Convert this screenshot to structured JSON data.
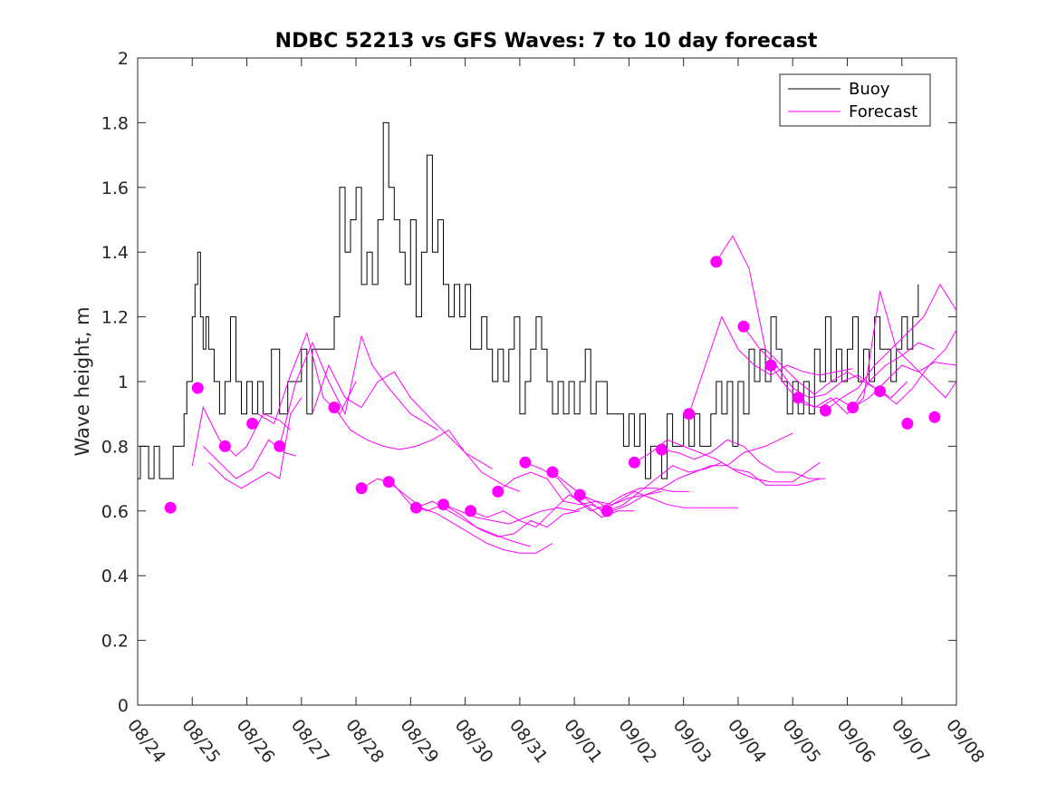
{
  "chart_data": {
    "type": "line",
    "title": "NDBC 52213 vs GFS Waves: 7 to 10 day forecast",
    "ylabel": "Wave height, m",
    "xlabel": "",
    "xlim": [
      0,
      15
    ],
    "ylim": [
      0,
      2
    ],
    "x_unit": "days since 08/24 00:00",
    "x_tick_labels": [
      "08/24",
      "08/25",
      "08/26",
      "08/27",
      "08/28",
      "08/29",
      "08/30",
      "08/31",
      "09/01",
      "09/02",
      "09/03",
      "09/04",
      "09/05",
      "09/06",
      "09/07",
      "09/08"
    ],
    "y_ticks": [
      0,
      0.2,
      0.4,
      0.6,
      0.8,
      1,
      1.2,
      1.4,
      1.6,
      1.8,
      2
    ],
    "y_tick_labels": [
      "0",
      "0.2",
      "0.4",
      "0.6",
      "0.8",
      "1",
      "1.2",
      "1.4",
      "1.6",
      "1.8",
      "2"
    ],
    "legend": {
      "position": "top-right",
      "entries": [
        {
          "label": "Buoy",
          "color": "#000000"
        },
        {
          "label": "Forecast",
          "color": "#ff00ff"
        }
      ]
    },
    "colors": {
      "buoy": "#000000",
      "forecast": "#ff00ff",
      "axis": "#262626"
    },
    "buoy": {
      "x": [
        0.0,
        0.05,
        0.1,
        0.2,
        0.3,
        0.4,
        0.45,
        0.55,
        0.65,
        0.75,
        0.85,
        0.9,
        1.0,
        1.05,
        1.1,
        1.15,
        1.2,
        1.25,
        1.3,
        1.4,
        1.5,
        1.6,
        1.7,
        1.8,
        1.9,
        2.0,
        2.1,
        2.2,
        2.3,
        2.35,
        2.45,
        2.6,
        2.75,
        2.9,
        3.0,
        3.1,
        3.2,
        3.3,
        3.4,
        3.5,
        3.6,
        3.7,
        3.8,
        3.9,
        4.0,
        4.1,
        4.2,
        4.3,
        4.4,
        4.5,
        4.55,
        4.6,
        4.7,
        4.8,
        4.9,
        5.0,
        5.1,
        5.2,
        5.3,
        5.4,
        5.5,
        5.6,
        5.7,
        5.8,
        5.9,
        6.0,
        6.1,
        6.2,
        6.3,
        6.4,
        6.5,
        6.6,
        6.7,
        6.8,
        6.9,
        7.0,
        7.1,
        7.2,
        7.3,
        7.4,
        7.5,
        7.6,
        7.7,
        7.8,
        7.9,
        8.0,
        8.1,
        8.2,
        8.3,
        8.4,
        8.5,
        8.6,
        8.7,
        8.8,
        8.9,
        9.0,
        9.1,
        9.2,
        9.3,
        9.4,
        9.5,
        9.6,
        9.7,
        9.8,
        9.9,
        10.0,
        10.1,
        10.2,
        10.3,
        10.4,
        10.5,
        10.6,
        10.7,
        10.8,
        10.9,
        11.0,
        11.1,
        11.2,
        11.3,
        11.4,
        11.5,
        11.6,
        11.7,
        11.8,
        11.9,
        12.0,
        12.1,
        12.2,
        12.3,
        12.4,
        12.5,
        12.6,
        12.7,
        12.8,
        12.9,
        13.0,
        13.1,
        13.2,
        13.3,
        13.4,
        13.5,
        13.6,
        13.7,
        13.8,
        13.9,
        14.0,
        14.1,
        14.2,
        14.3
      ],
      "y": [
        0.7,
        0.8,
        0.8,
        0.7,
        0.8,
        0.7,
        0.7,
        0.7,
        0.8,
        0.8,
        0.9,
        1.0,
        1.2,
        1.3,
        1.4,
        1.2,
        1.1,
        1.2,
        1.1,
        1.0,
        0.9,
        1.0,
        1.2,
        1.0,
        0.9,
        1.0,
        0.9,
        1.0,
        0.9,
        0.9,
        1.1,
        0.9,
        1.0,
        1.0,
        1.1,
        0.9,
        1.1,
        1.1,
        1.1,
        1.1,
        1.2,
        1.6,
        1.4,
        1.5,
        1.6,
        1.3,
        1.4,
        1.3,
        1.5,
        1.8,
        1.8,
        1.6,
        1.5,
        1.4,
        1.3,
        1.5,
        1.2,
        1.4,
        1.7,
        1.4,
        1.5,
        1.3,
        1.2,
        1.3,
        1.2,
        1.3,
        1.1,
        1.1,
        1.2,
        1.1,
        1.0,
        1.1,
        1.0,
        1.1,
        1.2,
        0.9,
        1.0,
        1.1,
        1.2,
        1.1,
        1.0,
        0.9,
        1.0,
        0.9,
        1.0,
        0.9,
        1.0,
        1.1,
        0.9,
        1.0,
        1.0,
        0.9,
        0.9,
        0.9,
        0.8,
        0.9,
        0.8,
        0.9,
        0.7,
        0.8,
        0.8,
        0.7,
        0.9,
        0.8,
        0.8,
        0.9,
        0.8,
        0.9,
        0.8,
        0.8,
        0.9,
        1.0,
        0.9,
        1.0,
        0.8,
        1.0,
        0.9,
        1.1,
        1.0,
        1.1,
        1.0,
        1.2,
        1.1,
        1.0,
        0.9,
        1.0,
        0.9,
        1.0,
        0.9,
        1.1,
        1.0,
        1.2,
        1.0,
        1.1,
        1.0,
        1.1,
        1.2,
        1.0,
        1.1,
        1.0,
        1.2,
        1.1,
        1.1,
        1.0,
        1.1,
        1.2,
        1.1,
        1.2,
        1.3
      ]
    },
    "forecast_lines": [
      {
        "x": [
          1.0,
          1.2,
          1.5,
          1.8,
          2.0,
          2.3,
          2.6,
          2.8
        ],
        "y": [
          0.74,
          0.92,
          0.82,
          0.77,
          0.8,
          0.9,
          0.88,
          0.85
        ]
      },
      {
        "x": [
          1.2,
          1.5,
          1.8,
          2.1,
          2.4,
          2.7,
          2.9
        ],
        "y": [
          0.8,
          0.75,
          0.7,
          0.73,
          0.82,
          0.78,
          0.77
        ]
      },
      {
        "x": [
          1.3,
          1.6,
          1.9,
          2.2,
          2.4,
          2.6,
          2.8,
          3.0
        ],
        "y": [
          0.75,
          0.7,
          0.67,
          0.7,
          0.72,
          0.7,
          0.9,
          0.95
        ]
      },
      {
        "x": [
          2.2,
          2.5,
          2.8,
          3.1,
          3.4,
          3.7,
          4.0
        ],
        "y": [
          0.9,
          0.87,
          1.02,
          1.15,
          0.95,
          0.9,
          1.0
        ]
      },
      {
        "x": [
          2.6,
          2.9,
          3.2,
          3.5,
          3.8,
          4.1,
          4.3,
          4.6,
          5.0,
          5.5
        ],
        "y": [
          0.8,
          1.0,
          1.12,
          1.0,
          0.9,
          1.14,
          1.05,
          0.98,
          0.9,
          0.85
        ]
      },
      {
        "x": [
          3.2,
          3.5,
          3.8,
          4.1,
          4.4,
          4.7,
          5.0,
          5.4,
          6.0,
          6.5
        ],
        "y": [
          0.9,
          1.05,
          0.95,
          0.92,
          1.0,
          1.03,
          0.95,
          0.88,
          0.78,
          0.73
        ]
      },
      {
        "x": [
          3.6,
          3.9,
          4.2,
          4.5,
          4.8,
          5.1,
          5.4,
          5.7,
          6.0,
          6.3,
          6.7,
          7.0
        ],
        "y": [
          0.92,
          0.85,
          0.82,
          0.8,
          0.79,
          0.8,
          0.82,
          0.85,
          0.78,
          0.72,
          0.68,
          0.66
        ]
      },
      {
        "x": [
          4.1,
          4.4,
          4.7,
          5.0,
          5.3,
          5.6,
          5.9,
          6.2,
          6.5,
          6.8,
          7.0,
          7.2
        ],
        "y": [
          0.67,
          0.7,
          0.68,
          0.62,
          0.6,
          0.62,
          0.59,
          0.55,
          0.53,
          0.51,
          0.5,
          0.49
        ]
      },
      {
        "x": [
          4.6,
          4.9,
          5.2,
          5.5,
          5.8,
          6.1,
          6.4,
          6.7,
          7.0,
          7.3,
          7.6
        ],
        "y": [
          0.69,
          0.65,
          0.61,
          0.59,
          0.56,
          0.53,
          0.5,
          0.48,
          0.47,
          0.47,
          0.5
        ]
      },
      {
        "x": [
          5.1,
          5.4,
          5.7,
          6.0,
          6.3,
          6.6,
          6.9,
          7.2,
          7.5,
          7.8,
          8.1
        ],
        "y": [
          0.61,
          0.63,
          0.6,
          0.57,
          0.54,
          0.52,
          0.53,
          0.57,
          0.55,
          0.59,
          0.6
        ]
      },
      {
        "x": [
          5.6,
          5.9,
          6.2,
          6.5,
          6.8,
          7.1,
          7.4,
          7.7,
          8.0,
          8.3,
          8.6
        ],
        "y": [
          0.62,
          0.6,
          0.58,
          0.57,
          0.56,
          0.58,
          0.6,
          0.61,
          0.6,
          0.62,
          0.6
        ]
      },
      {
        "x": [
          6.1,
          6.4,
          6.7,
          7.0,
          7.3,
          7.6,
          7.9,
          8.2,
          8.5,
          8.8,
          9.1
        ],
        "y": [
          0.6,
          0.58,
          0.6,
          0.57,
          0.55,
          0.6,
          0.65,
          0.62,
          0.58,
          0.6,
          0.6
        ]
      },
      {
        "x": [
          6.6,
          6.9,
          7.2,
          7.5,
          7.8,
          8.1,
          8.4,
          8.7,
          9.0,
          9.3,
          9.6
        ],
        "y": [
          0.66,
          0.7,
          0.72,
          0.7,
          0.63,
          0.62,
          0.63,
          0.62,
          0.64,
          0.65,
          0.66
        ]
      },
      {
        "x": [
          7.1,
          7.4,
          7.7,
          8.0,
          8.3,
          8.6,
          8.9,
          9.2,
          9.5,
          9.8,
          10.1
        ],
        "y": [
          0.75,
          0.73,
          0.7,
          0.64,
          0.6,
          0.62,
          0.65,
          0.67,
          0.67,
          0.66,
          0.66
        ]
      },
      {
        "x": [
          7.6,
          7.9,
          8.2,
          8.5,
          8.8,
          9.1,
          9.4,
          9.7,
          10.0,
          10.3,
          10.6,
          11.0
        ],
        "y": [
          0.72,
          0.68,
          0.64,
          0.6,
          0.63,
          0.66,
          0.64,
          0.62,
          0.61,
          0.61,
          0.61,
          0.61
        ]
      },
      {
        "x": [
          8.1,
          8.4,
          8.7,
          9.0,
          9.3,
          9.6,
          9.9,
          10.2,
          10.5,
          10.8,
          11.1,
          11.5,
          12.0
        ],
        "y": [
          0.65,
          0.63,
          0.6,
          0.62,
          0.65,
          0.67,
          0.7,
          0.72,
          0.74,
          0.74,
          0.78,
          0.8,
          0.84
        ]
      },
      {
        "x": [
          8.6,
          8.9,
          9.2,
          9.5,
          9.8,
          10.1,
          10.4,
          10.7,
          11.0,
          11.3,
          11.6,
          12.0,
          12.5
        ],
        "y": [
          0.6,
          0.62,
          0.66,
          0.7,
          0.74,
          0.72,
          0.73,
          0.75,
          0.72,
          0.7,
          0.69,
          0.69,
          0.75
        ]
      },
      {
        "x": [
          9.1,
          9.4,
          9.7,
          10.0,
          10.3,
          10.6,
          10.9,
          11.2,
          11.5,
          11.8,
          12.1,
          12.5
        ],
        "y": [
          0.75,
          0.78,
          0.82,
          0.8,
          0.78,
          0.76,
          0.73,
          0.72,
          0.68,
          0.68,
          0.68,
          0.7
        ]
      },
      {
        "x": [
          9.6,
          9.9,
          10.2,
          10.5,
          10.8,
          11.1,
          11.4,
          11.7,
          12.0,
          12.3,
          12.6
        ],
        "y": [
          0.79,
          0.78,
          0.76,
          0.78,
          0.82,
          0.8,
          0.75,
          0.72,
          0.72,
          0.7,
          0.7
        ]
      },
      {
        "x": [
          10.1,
          10.4,
          10.7,
          11.0,
          11.3,
          11.6,
          11.9,
          12.2,
          12.5,
          12.8,
          13.1
        ],
        "y": [
          0.9,
          1.05,
          1.2,
          1.1,
          1.05,
          1.02,
          1.05,
          1.03,
          1.02,
          1.03,
          1.04
        ]
      },
      {
        "x": [
          10.6,
          10.9,
          11.2,
          11.5,
          11.8,
          12.1,
          12.4,
          12.7,
          13.0,
          13.3,
          13.6
        ],
        "y": [
          1.37,
          1.45,
          1.35,
          1.1,
          1.05,
          1.0,
          0.96,
          1.0,
          1.03,
          1.0,
          0.97
        ]
      },
      {
        "x": [
          11.1,
          11.4,
          11.7,
          12.0,
          12.3,
          12.6,
          12.9,
          13.2,
          13.5,
          13.8,
          14.1
        ],
        "y": [
          1.17,
          1.1,
          1.05,
          0.98,
          0.95,
          0.96,
          1.0,
          1.02,
          0.98,
          0.95,
          1.0
        ]
      },
      {
        "x": [
          11.6,
          11.9,
          12.2,
          12.5,
          12.8,
          13.1,
          13.4,
          13.7,
          14.0,
          14.3,
          14.6
        ],
        "y": [
          1.05,
          0.98,
          0.93,
          0.92,
          0.95,
          0.92,
          1.0,
          1.05,
          1.08,
          1.12,
          1.1
        ]
      },
      {
        "x": [
          12.1,
          12.4,
          12.7,
          13.0,
          13.3,
          13.6,
          13.9,
          14.2,
          14.5,
          14.8,
          15.0
        ],
        "y": [
          0.95,
          0.92,
          0.95,
          0.9,
          0.95,
          1.28,
          1.1,
          1.05,
          1.0,
          0.95,
          1.0
        ]
      },
      {
        "x": [
          12.6,
          12.9,
          13.2,
          13.5,
          13.8,
          14.1,
          14.4,
          14.7,
          15.0
        ],
        "y": [
          0.91,
          0.95,
          0.98,
          1.05,
          1.1,
          1.15,
          1.2,
          1.3,
          1.22
        ]
      },
      {
        "x": [
          13.1,
          13.4,
          13.7,
          14.0,
          14.3,
          14.6,
          15.0
        ],
        "y": [
          0.92,
          0.95,
          1.0,
          1.05,
          1.03,
          1.06,
          1.05
        ]
      },
      {
        "x": [
          13.6,
          13.9,
          14.2,
          14.5,
          14.8,
          15.0
        ],
        "y": [
          0.97,
          0.93,
          0.98,
          1.05,
          1.1,
          1.16
        ]
      }
    ],
    "forecast_points": {
      "x": [
        0.6,
        1.1,
        1.6,
        2.1,
        2.6,
        3.6,
        4.1,
        4.6,
        5.1,
        5.6,
        6.1,
        6.6,
        7.1,
        7.6,
        8.1,
        8.6,
        9.1,
        9.6,
        10.1,
        10.6,
        11.1,
        11.6,
        12.1,
        12.6,
        13.1,
        13.6,
        14.1,
        14.6
      ],
      "y": [
        0.61,
        0.98,
        0.8,
        0.87,
        0.8,
        0.92,
        0.67,
        0.69,
        0.61,
        0.62,
        0.6,
        0.66,
        0.75,
        0.72,
        0.65,
        0.6,
        0.75,
        0.79,
        0.9,
        1.37,
        1.17,
        1.05,
        0.95,
        0.91,
        0.92,
        0.97,
        0.87,
        0.89
      ]
    }
  }
}
